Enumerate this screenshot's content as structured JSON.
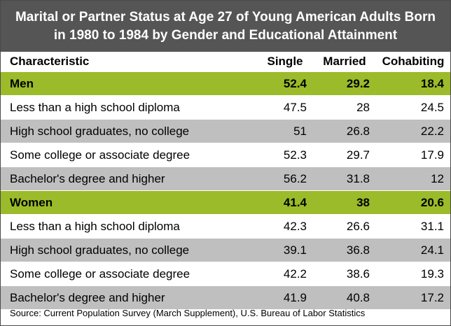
{
  "chart_data": {
    "type": "table",
    "title_lines": [
      "Marital or Partner Status at Age 27 of Young American Adults Born",
      "in 1980 to 1984 by Gender and Educational Attainment"
    ],
    "columns": [
      "Characteristic",
      "Single",
      "Married",
      "Cohabiting"
    ],
    "rows": [
      {
        "label": "Men",
        "values": [
          "52.4",
          "29.2",
          "18.4"
        ],
        "group": true
      },
      {
        "label": "Less than a high school diploma",
        "values": [
          "47.5",
          "28",
          "24.5"
        ],
        "group": false
      },
      {
        "label": "High school graduates, no college",
        "values": [
          "51",
          "26.8",
          "22.2"
        ],
        "group": false
      },
      {
        "label": "Some college or associate degree",
        "values": [
          "52.3",
          "29.7",
          "17.9"
        ],
        "group": false
      },
      {
        "label": "Bachelor's degree and higher",
        "values": [
          "56.2",
          "31.8",
          "12"
        ],
        "group": false
      },
      {
        "label": "Women",
        "values": [
          "41.4",
          "38",
          "20.6"
        ],
        "group": true
      },
      {
        "label": "Less than a high school diploma",
        "values": [
          "42.3",
          "26.6",
          "31.1"
        ],
        "group": false
      },
      {
        "label": "High school graduates, no college",
        "values": [
          "39.1",
          "36.8",
          "24.1"
        ],
        "group": false
      },
      {
        "label": "Some college or associate degree",
        "values": [
          "42.2",
          "38.6",
          "19.3"
        ],
        "group": false
      },
      {
        "label": "Bachelor's degree and higher",
        "values": [
          "41.9",
          "40.8",
          "17.2"
        ],
        "group": false
      }
    ],
    "source": "Source: Current Population Survey (March Supplement), U.S. Bureau of Labor Statistics"
  },
  "colors": {
    "title_bg": "#555555",
    "group_bg": "#9bbb2a",
    "shade_bg": "#bfbfbf"
  }
}
